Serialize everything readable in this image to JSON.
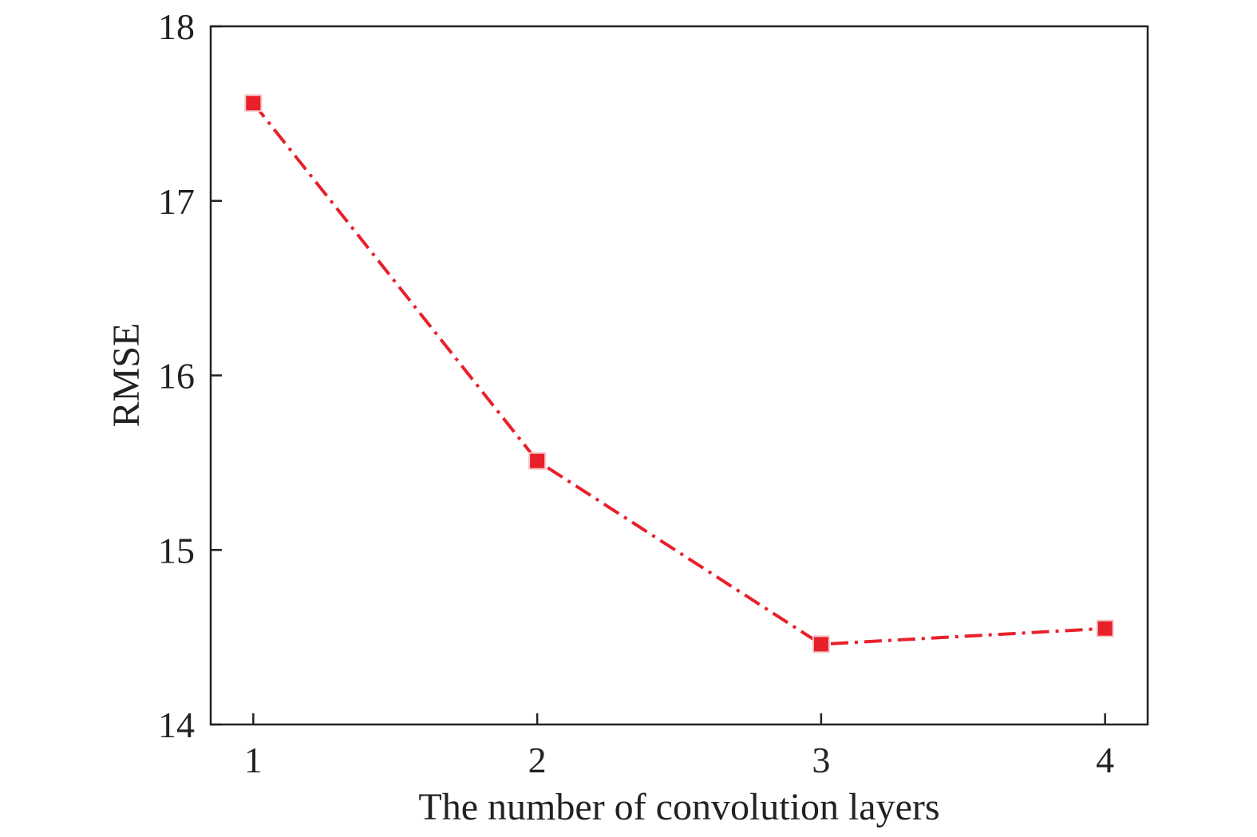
{
  "chart_data": {
    "type": "line",
    "title": "",
    "xlabel": "The number of convolution layers",
    "ylabel": "RMSE",
    "x": [
      1,
      2,
      3,
      4
    ],
    "xlim": [
      0.85,
      4.15
    ],
    "ylim": [
      14,
      18
    ],
    "x_ticks": [
      1,
      2,
      3,
      4
    ],
    "y_ticks": [
      14,
      15,
      16,
      17,
      18
    ],
    "grid": false,
    "legend": "none",
    "series": [
      {
        "values": [
          17.56,
          15.51,
          14.46,
          14.55
        ],
        "color": "#e8202a",
        "line_style": "dash-dot",
        "marker": "square"
      }
    ]
  }
}
